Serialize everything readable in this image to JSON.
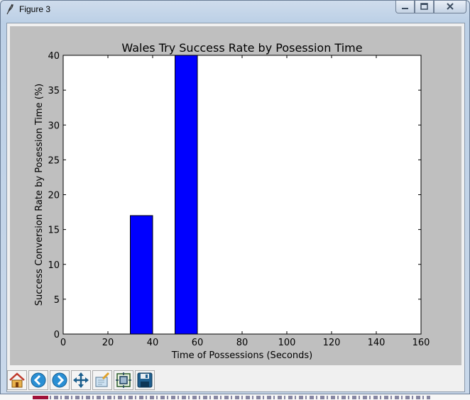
{
  "window": {
    "title": "Figure 3"
  },
  "toolbar": {
    "buttons": [
      {
        "name": "home-button",
        "icon": "home-icon"
      },
      {
        "name": "back-button",
        "icon": "back-arrow-icon"
      },
      {
        "name": "forward-button",
        "icon": "forward-arrow-icon"
      },
      {
        "name": "pan-button",
        "icon": "pan-arrows-icon"
      },
      {
        "name": "zoom-button",
        "icon": "zoom-rect-icon"
      },
      {
        "name": "configure-subplots-button",
        "icon": "subplots-icon"
      },
      {
        "name": "save-button",
        "icon": "save-disk-icon"
      }
    ]
  },
  "chart_data": {
    "type": "bar",
    "title": "Wales Try Success Rate by Posession Time",
    "xlabel": "Time of Possessions (Seconds)",
    "ylabel": "Success Conversion Rate by Posession Time (%)",
    "xlim": [
      0,
      160
    ],
    "ylim": [
      0,
      40
    ],
    "xticks": [
      0,
      20,
      40,
      60,
      80,
      100,
      120,
      140,
      160
    ],
    "yticks": [
      0,
      5,
      10,
      15,
      20,
      25,
      30,
      35,
      40
    ],
    "bars": [
      {
        "x_start": 30,
        "x_end": 40,
        "value": 17
      },
      {
        "x_start": 50,
        "x_end": 60,
        "value": 40
      }
    ],
    "bar_color": "#0000ff",
    "grid": false
  }
}
